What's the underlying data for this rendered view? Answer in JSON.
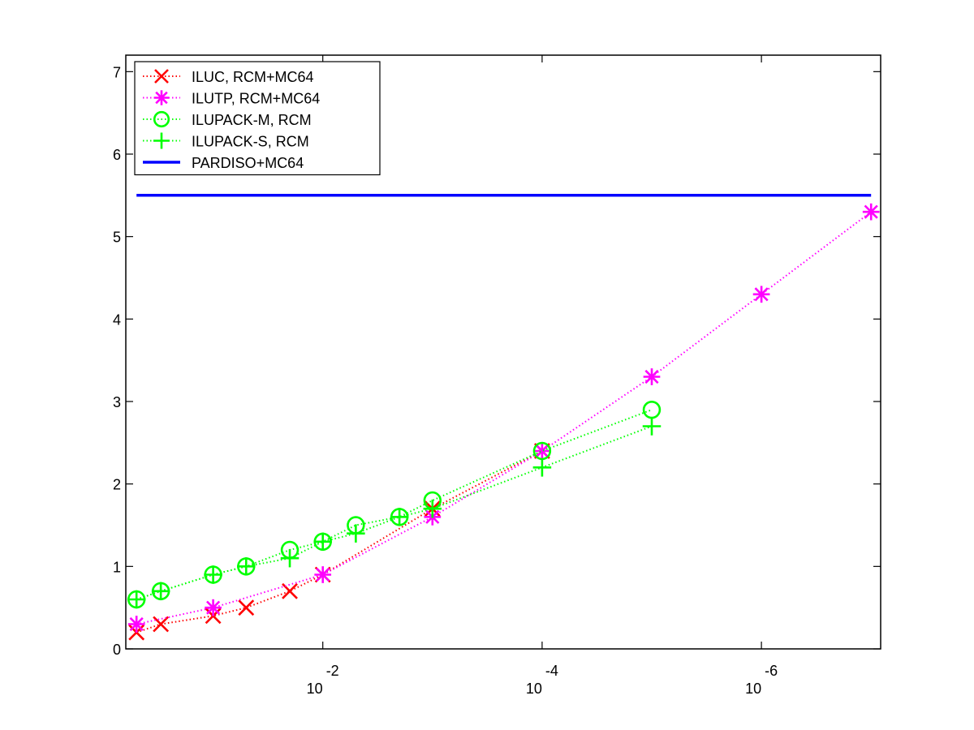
{
  "chart_data": {
    "type": "line",
    "x_scale": "log",
    "x_reversed": true,
    "x_tick_labels": [
      {
        "base": "10",
        "exp": "-2",
        "value": 0.01
      },
      {
        "base": "10",
        "exp": "-4",
        "value": 0.0001
      },
      {
        "base": "10",
        "exp": "-6",
        "value": 1e-06
      }
    ],
    "ylim": [
      0,
      7.2
    ],
    "y_ticks": [
      0,
      1,
      2,
      3,
      4,
      5,
      6,
      7
    ],
    "grid": false,
    "legend_position": "top-left",
    "series": [
      {
        "name": "ILUC, RCM+MC64",
        "color": "#ff0000",
        "marker": "x",
        "line_style": "dotted",
        "points": [
          {
            "x": 0.5,
            "y": 0.2
          },
          {
            "x": 0.3,
            "y": 0.3
          },
          {
            "x": 0.1,
            "y": 0.4
          },
          {
            "x": 0.05,
            "y": 0.5
          },
          {
            "x": 0.02,
            "y": 0.7
          },
          {
            "x": 0.01,
            "y": 0.9
          },
          {
            "x": 0.001,
            "y": 1.7
          },
          {
            "x": 0.0001,
            "y": 2.4
          }
        ]
      },
      {
        "name": "ILUTP, RCM+MC64",
        "color": "#ff00ff",
        "marker": "asterisk",
        "line_style": "dotted",
        "points": [
          {
            "x": 0.5,
            "y": 0.3
          },
          {
            "x": 0.1,
            "y": 0.5
          },
          {
            "x": 0.01,
            "y": 0.9
          },
          {
            "x": 0.001,
            "y": 1.6
          },
          {
            "x": 0.0001,
            "y": 2.4
          },
          {
            "x": 1e-05,
            "y": 3.3
          },
          {
            "x": 1e-06,
            "y": 4.3
          },
          {
            "x": 1e-07,
            "y": 5.3
          }
        ]
      },
      {
        "name": "ILUPACK-M, RCM",
        "color": "#00ff00",
        "marker": "circle",
        "line_style": "dotted",
        "points": [
          {
            "x": 0.5,
            "y": 0.6
          },
          {
            "x": 0.3,
            "y": 0.7
          },
          {
            "x": 0.1,
            "y": 0.9
          },
          {
            "x": 0.05,
            "y": 1.0
          },
          {
            "x": 0.02,
            "y": 1.2
          },
          {
            "x": 0.01,
            "y": 1.3
          },
          {
            "x": 0.005,
            "y": 1.5
          },
          {
            "x": 0.002,
            "y": 1.6
          },
          {
            "x": 0.001,
            "y": 1.8
          },
          {
            "x": 0.0001,
            "y": 2.4
          },
          {
            "x": 1e-05,
            "y": 2.9
          }
        ]
      },
      {
        "name": "ILUPACK-S, RCM",
        "color": "#00ff00",
        "marker": "plus",
        "line_style": "dotted",
        "points": [
          {
            "x": 0.5,
            "y": 0.6
          },
          {
            "x": 0.3,
            "y": 0.7
          },
          {
            "x": 0.1,
            "y": 0.9
          },
          {
            "x": 0.05,
            "y": 1.0
          },
          {
            "x": 0.02,
            "y": 1.1
          },
          {
            "x": 0.01,
            "y": 1.3
          },
          {
            "x": 0.005,
            "y": 1.4
          },
          {
            "x": 0.002,
            "y": 1.6
          },
          {
            "x": 0.001,
            "y": 1.7
          },
          {
            "x": 0.0001,
            "y": 2.2
          },
          {
            "x": 1e-05,
            "y": 2.7
          }
        ]
      },
      {
        "name": "PARDISO+MC64",
        "color": "#0000ff",
        "marker": "none",
        "line_style": "solid",
        "points": [
          {
            "x": 0.5,
            "y": 5.5
          },
          {
            "x": 1e-07,
            "y": 5.5
          }
        ]
      }
    ]
  }
}
